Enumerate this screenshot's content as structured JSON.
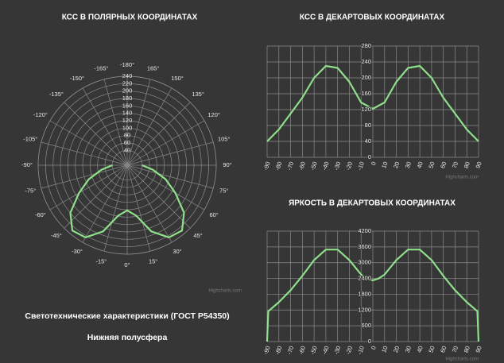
{
  "chart_data": [
    {
      "type": "polar",
      "title": "КСС В ПОЛЯРНЫХ КООРДИНАТАХ",
      "credit": "Highcharts.com",
      "x": [
        -90,
        -80,
        -70,
        -60,
        -50,
        -40,
        -30,
        -20,
        -10,
        0,
        10,
        20,
        30,
        40,
        50,
        60,
        70,
        80,
        90
      ],
      "values": [
        40,
        70,
        110,
        150,
        200,
        230,
        225,
        190,
        138,
        122,
        138,
        190,
        225,
        230,
        200,
        150,
        110,
        70,
        40
      ],
      "color": "#8fe08a",
      "xlim": [
        -180,
        180
      ],
      "xticks": [
        {
          "value": -180,
          "label": "-180°"
        },
        {
          "value": -165,
          "label": "-165°"
        },
        {
          "value": -150,
          "label": "-150°"
        },
        {
          "value": -135,
          "label": "-135°"
        },
        {
          "value": -120,
          "label": "-120°"
        },
        {
          "value": -105,
          "label": "-105°"
        },
        {
          "value": -90,
          "label": "-90°"
        },
        {
          "value": -75,
          "label": "-75°"
        },
        {
          "value": -60,
          "label": "-60°"
        },
        {
          "value": -45,
          "label": "-45°"
        },
        {
          "value": -30,
          "label": "-30°"
        },
        {
          "value": -15,
          "label": "-15°"
        },
        {
          "value": 0,
          "label": "0°"
        },
        {
          "value": 15,
          "label": "15°"
        },
        {
          "value": 30,
          "label": "30°"
        },
        {
          "value": 45,
          "label": "45°"
        },
        {
          "value": 60,
          "label": "60°"
        },
        {
          "value": 75,
          "label": "75°"
        },
        {
          "value": 90,
          "label": "90°"
        },
        {
          "value": 105,
          "label": "105°"
        },
        {
          "value": 120,
          "label": "120°"
        },
        {
          "value": 135,
          "label": "135°"
        },
        {
          "value": 150,
          "label": "150°"
        },
        {
          "value": 165,
          "label": "165°"
        }
      ],
      "ylim": [
        0,
        240
      ],
      "yticks": [
        40,
        60,
        80,
        100,
        120,
        140,
        160,
        180,
        200,
        220,
        240
      ]
    },
    {
      "type": "line",
      "title": "КСС В ДЕКАРТОВЫХ КООРДИНАТАХ",
      "credit": "Highcharts.com",
      "x": [
        -90,
        -80,
        -70,
        -60,
        -50,
        -40,
        -30,
        -20,
        -10,
        0,
        10,
        20,
        30,
        40,
        50,
        60,
        70,
        80,
        90
      ],
      "values": [
        40,
        70,
        110,
        150,
        200,
        230,
        225,
        190,
        138,
        122,
        138,
        190,
        225,
        230,
        200,
        150,
        110,
        70,
        40
      ],
      "color": "#8fe08a",
      "xlim": [
        -90,
        90
      ],
      "xticks": [
        -90,
        -80,
        -70,
        -60,
        -50,
        -40,
        -30,
        -20,
        -10,
        0,
        10,
        20,
        30,
        40,
        50,
        60,
        70,
        80,
        90
      ],
      "ylim": [
        0,
        280
      ],
      "yticks": [
        0,
        40,
        80,
        120,
        160,
        200,
        240,
        280
      ]
    },
    {
      "type": "line",
      "title": "ЯРКОСТЬ В ДЕКАРТОВЫХ КООРДИНАТАХ",
      "credit": "Highcharts.com",
      "x": [
        -90,
        -89,
        -80,
        -70,
        -60,
        -50,
        -40,
        -30,
        -20,
        -10,
        -5,
        0,
        5,
        10,
        20,
        30,
        40,
        50,
        60,
        70,
        80,
        89,
        90
      ],
      "values": [
        0,
        1150,
        1500,
        1950,
        2500,
        3100,
        3500,
        3500,
        3100,
        2550,
        2400,
        2330,
        2400,
        2550,
        3100,
        3500,
        3500,
        3100,
        2500,
        1950,
        1500,
        1150,
        0
      ],
      "color": "#8fe08a",
      "xlim": [
        -90,
        90
      ],
      "xticks": [
        -90,
        -80,
        -70,
        -60,
        -50,
        -40,
        -30,
        -20,
        -10,
        0,
        10,
        20,
        30,
        40,
        50,
        60,
        70,
        80,
        90
      ],
      "ylim": [
        0,
        4200
      ],
      "yticks": [
        0,
        600,
        1200,
        1800,
        2400,
        3000,
        3600,
        4200
      ]
    }
  ],
  "caption": {
    "title": "Светотехнические характеристики (ГОСТ Р54350)",
    "subtitle": "Нижняя полусфера"
  }
}
